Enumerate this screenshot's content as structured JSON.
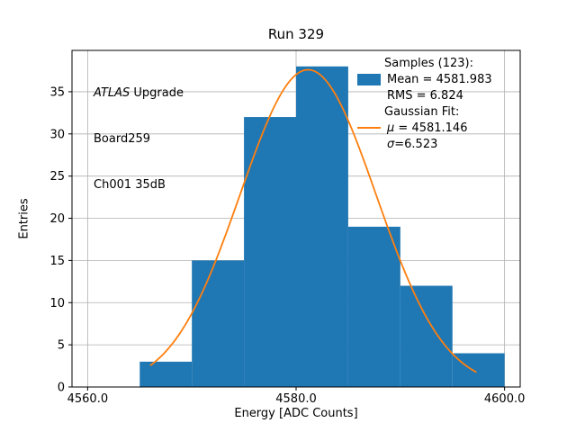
{
  "chart_data": {
    "type": "bar",
    "subtype": "histogram-with-gaussian-fit",
    "title": "Run 329",
    "xlabel": "Energy [ADC Counts]",
    "ylabel": "Entries",
    "bin_edges": [
      4565,
      4570,
      4575,
      4580,
      4585,
      4590,
      4595,
      4600
    ],
    "counts": [
      3,
      15,
      32,
      38,
      19,
      12,
      4
    ],
    "total_samples": 123,
    "bar_color": "#1f77b4",
    "fit": {
      "type": "gaussian",
      "mu": 4581.146,
      "sigma": 6.523,
      "amplitude": 37.61,
      "color": "#ff7f0e",
      "x_start": 4566.0,
      "x_end": 4597.3
    },
    "xlim": [
      4558.5,
      4601.5
    ],
    "ylim": [
      0,
      39.9
    ],
    "xticks": [
      4560,
      4580,
      4600
    ],
    "xtick_labels": [
      "4560.0",
      "4580.0",
      "4600.0"
    ],
    "yticks": [
      0,
      5,
      10,
      15,
      20,
      25,
      30,
      35
    ],
    "grid": true,
    "grid_color": "#b0b0b0",
    "annotation": {
      "atlas": "ATLAS",
      "upgrade": " Upgrade",
      "line2": "Board259",
      "line3": "Ch001 35dB"
    },
    "legend": {
      "position": "upper-right",
      "samples_header": "Samples (123):",
      "mean_label": "Mean = 4581.983",
      "rms_label": "RMS = 6.824",
      "fit_header": "Gaussian Fit:",
      "mu_symbol": "μ",
      "mu_value": " = 4581.146",
      "sigma_symbol": "σ",
      "sigma_value": "=6.523"
    }
  }
}
